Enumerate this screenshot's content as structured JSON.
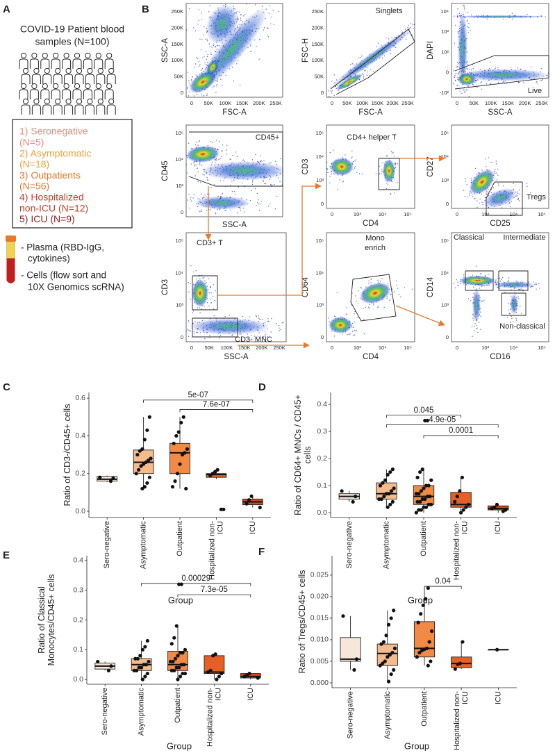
{
  "panel_a": {
    "label": "A",
    "title_lines": [
      "COVID-19 Patient blood",
      "samples (N=100)"
    ],
    "groups": [
      {
        "lines": [
          "1) Seronegative",
          "(N=5)"
        ],
        "color": "#ee8a80"
      },
      {
        "lines": [
          "2) Asymptomatic",
          "(N=18)"
        ],
        "color": "#f0a23a"
      },
      {
        "lines": [
          "3) Outpatients",
          "(N=56)"
        ],
        "color": "#e6782c"
      },
      {
        "lines": [
          "4) Hospitalized",
          "non-ICU (N=12)"
        ],
        "color": "#c2412a"
      },
      {
        "lines": [
          "5) ICU (N=9)"
        ],
        "color": "#8e1f1f"
      }
    ],
    "sample_lines": [
      "- Plasma (RBD-IgG,",
      "cytokines)",
      "- Cells (flow sort and",
      "10X Genomics scRNA)"
    ]
  },
  "panel_b": {
    "label": "B",
    "plots": [
      {
        "x_label": "FSC-A",
        "y_label": "SSC-A",
        "x_ticks": [
          "0",
          "50K",
          "100K",
          "150K",
          "200K",
          "250K"
        ],
        "y_ticks": [
          "0",
          "50K",
          "100K",
          "150K",
          "200K",
          "250K"
        ],
        "gates": []
      },
      {
        "x_label": "FSC-A",
        "y_label": "FSC-H",
        "x_ticks": [
          "0",
          "50K",
          "100K",
          "150K",
          "200K",
          "250K"
        ],
        "y_ticks": [
          "0",
          "50K",
          "100K",
          "150K",
          "200K",
          "250K"
        ],
        "gates": [
          "Singlets"
        ]
      },
      {
        "x_label": "SSC-A",
        "y_label": "DAPI",
        "x_ticks": [
          "0",
          "50K",
          "100K",
          "150K",
          "200K",
          "250K"
        ],
        "y_ticks": [
          "-10²",
          "0",
          "10²",
          "10³",
          "10⁴"
        ],
        "gates": [
          "Live"
        ]
      },
      {
        "x_label": "SSC-A",
        "y_label": "CD45",
        "x_ticks": [],
        "y_ticks": [
          "0",
          "10³",
          "10⁴",
          "10⁵"
        ],
        "gates": [
          "CD45+"
        ]
      },
      {
        "x_label": "CD4",
        "y_label": "CD3",
        "x_ticks": [
          "0",
          "10³",
          "10⁴",
          "10⁵"
        ],
        "y_ticks": [
          "0",
          "10³",
          "10⁴",
          "10⁵"
        ],
        "gates": [
          "CD4+ helper T"
        ]
      },
      {
        "x_label": "CD25",
        "y_label": "CD27",
        "x_ticks": [
          "0",
          "10³",
          "10⁴",
          "10⁵"
        ],
        "y_ticks": [
          "0",
          "10³",
          "10⁴",
          "10⁵"
        ],
        "gates": [
          "Tregs"
        ]
      },
      {
        "x_label": "SSC-A",
        "y_label": "CD3",
        "x_ticks": [
          "0",
          "50K",
          "100K",
          "150K",
          "200K",
          "250K"
        ],
        "y_ticks": [
          "0",
          "10³",
          "10⁴",
          "10⁵"
        ],
        "gates": [
          "CD3+ T",
          "CD3- MNC"
        ]
      },
      {
        "x_label": "CD4",
        "y_label": "CD64",
        "x_ticks": [
          "0",
          "10³",
          "10⁴",
          "10⁵"
        ],
        "y_ticks": [
          "0",
          "10³",
          "10⁴",
          "10⁵"
        ],
        "gates": [
          "Mono",
          "enrich"
        ]
      },
      {
        "x_label": "CD16",
        "y_label": "CD14",
        "x_ticks": [
          "0",
          "10³",
          "10⁴",
          "10⁵"
        ],
        "y_ticks": [
          "0",
          "10³",
          "10⁴",
          "10⁵"
        ],
        "gates": [
          "Classical",
          "Intermediate",
          "Non-classical"
        ]
      }
    ]
  },
  "chart_data": [
    {
      "type": "box",
      "panel": "C",
      "y_label": "Ratio of CD3-/CD45+ cells",
      "x_label": "Group",
      "categories": [
        "Sero-negative",
        "Asymptomatic",
        "Outpatient",
        "Hospitalized non-ICU",
        "ICU"
      ],
      "ylim": [
        -0.033,
        0.63
      ],
      "yticks": [
        {
          "value": 0,
          "label": "0.0"
        },
        0.2,
        0.4,
        0.6
      ],
      "boxes": [
        {
          "color": "#f6e7da",
          "min": 0.155,
          "q1": 0.16,
          "median": 0.17,
          "q3": 0.185,
          "max": 0.19,
          "points": [
            0.18,
            0.175,
            0.16
          ]
        },
        {
          "color": "#f4bb8c",
          "min": 0.12,
          "q1": 0.2,
          "median": 0.26,
          "q3": 0.325,
          "max": 0.5,
          "points": [
            0.5,
            0.43,
            0.38,
            0.33,
            0.32,
            0.3,
            0.28,
            0.27,
            0.26,
            0.25,
            0.24,
            0.22,
            0.2,
            0.18,
            0.15,
            0.13,
            0.12
          ]
        },
        {
          "color": "#f08a45",
          "min": 0.12,
          "q1": 0.2,
          "median": 0.31,
          "q3": 0.36,
          "max": 0.5,
          "points": [
            0.5,
            0.47,
            0.42,
            0.4,
            0.36,
            0.33,
            0.31,
            0.3,
            0.25,
            0.2,
            0.16,
            0.13,
            0.12
          ]
        },
        {
          "color": "#e65f24",
          "min": 0.17,
          "q1": 0.18,
          "median": 0.195,
          "q3": 0.2,
          "max": 0.22,
          "points": [
            0.22,
            0.21,
            0.2,
            0.19,
            0.01,
            0.01
          ]
        },
        {
          "color": "#d8461b",
          "min": 0.02,
          "q1": 0.035,
          "median": 0.05,
          "q3": 0.065,
          "max": 0.08,
          "points": [
            0.08,
            0.06,
            0.04,
            0.02
          ]
        }
      ],
      "comparisons": [
        {
          "from": 1,
          "to": 4,
          "y": 0.59,
          "label": "5e-07"
        },
        {
          "from": 2,
          "to": 4,
          "y": 0.54,
          "label": "7.6e-07"
        }
      ]
    },
    {
      "type": "box",
      "panel": "D",
      "y_label": "Ratio of CD64+ MNCs / CD45+ cells",
      "x_label": "Group",
      "categories": [
        "Sero-negative",
        "Asymptomatic",
        "Outpatient",
        "Hospitalized non-ICU",
        "ICU"
      ],
      "ylim": [
        -0.018,
        0.444
      ],
      "yticks": [
        {
          "value": 0,
          "label": "0.0"
        },
        0.1,
        0.2,
        0.3,
        0.4
      ],
      "boxes": [
        {
          "color": "#f6e7da",
          "min": 0.04,
          "q1": 0.05,
          "median": 0.06,
          "q3": 0.07,
          "max": 0.08,
          "points": [
            0.08,
            0.06,
            0.04
          ]
        },
        {
          "color": "#f4bb8c",
          "min": 0.02,
          "q1": 0.05,
          "median": 0.07,
          "q3": 0.11,
          "max": 0.16,
          "points": [
            0.16,
            0.15,
            0.14,
            0.12,
            0.11,
            0.1,
            0.09,
            0.08,
            0.07,
            0.07,
            0.06,
            0.05,
            0.05,
            0.04,
            0.03,
            0.02
          ]
        },
        {
          "color": "#f08a45",
          "min": 0,
          "q1": 0.03,
          "median": 0.06,
          "q3": 0.1,
          "max": 0.16,
          "points": [
            0.34,
            0.34,
            0.16,
            0.15,
            0.13,
            0.12,
            0.1,
            0.1,
            0.09,
            0.08,
            0.07,
            0.07,
            0.06,
            0.06,
            0.05,
            0.05,
            0.04,
            0.04,
            0.03,
            0.03,
            0.02,
            0.02,
            0.01,
            0.01,
            0
          ]
        },
        {
          "color": "#e65f24",
          "min": 0,
          "q1": 0.02,
          "median": 0.03,
          "q3": 0.075,
          "max": 0.13,
          "points": [
            0.13,
            0.08,
            0.06,
            0.04,
            0.03,
            0.02,
            0.01,
            0
          ]
        },
        {
          "color": "#d8461b",
          "min": 0,
          "q1": 0.01,
          "median": 0.015,
          "q3": 0.025,
          "max": 0.03,
          "points": [
            0.03,
            0.02,
            0.015,
            0.01,
            0.005
          ]
        }
      ],
      "comparisons": [
        {
          "from": 1,
          "to": 3,
          "y": 0.36,
          "label": "0.045"
        },
        {
          "from": 1,
          "to": 4,
          "y": 0.325,
          "label": "4.9e-05"
        },
        {
          "from": 2,
          "to": 4,
          "y": 0.285,
          "label": "0.0001"
        }
      ]
    },
    {
      "type": "box",
      "panel": "E",
      "y_label": "Ratio of Classical Monocytes/CD45+ cells",
      "x_label": "Group",
      "categories": [
        "Sero-negative",
        "Asymptomatic",
        "Outpatient",
        "Hospitalized non-ICU",
        "ICU"
      ],
      "ylim": [
        -0.016,
        0.416
      ],
      "yticks": [
        {
          "value": 0,
          "label": "0.0"
        },
        0.1,
        0.2,
        0.3,
        0.4
      ],
      "boxes": [
        {
          "color": "#f6e7da",
          "min": 0.03,
          "q1": 0.035,
          "median": 0.045,
          "q3": 0.055,
          "max": 0.06,
          "points": [
            0.06,
            0.045,
            0.03
          ]
        },
        {
          "color": "#f4bb8c",
          "min": 0,
          "q1": 0.03,
          "median": 0.05,
          "q3": 0.07,
          "max": 0.13,
          "points": [
            0.13,
            0.11,
            0.1,
            0.08,
            0.07,
            0.07,
            0.06,
            0.05,
            0.05,
            0.04,
            0.04,
            0.03,
            0.03,
            0.02,
            0.01,
            0
          ]
        },
        {
          "color": "#f08a45",
          "min": 0,
          "q1": 0.03,
          "median": 0.05,
          "q3": 0.095,
          "max": 0.18,
          "points": [
            0.32,
            0.32,
            0.18,
            0.14,
            0.12,
            0.1,
            0.09,
            0.09,
            0.08,
            0.07,
            0.06,
            0.06,
            0.05,
            0.05,
            0.04,
            0.04,
            0.03,
            0.03,
            0.02,
            0.02,
            0.01,
            0
          ]
        },
        {
          "color": "#e65f24",
          "min": 0,
          "q1": 0.02,
          "median": 0.025,
          "q3": 0.08,
          "max": 0.085,
          "points": [
            0.085,
            0.08,
            0.03,
            0.025,
            0.02,
            0.01,
            0
          ]
        },
        {
          "color": "#d8461b",
          "min": 0,
          "q1": 0.005,
          "median": 0.01,
          "q3": 0.02,
          "max": 0.02,
          "points": [
            0.02,
            0.015,
            0.01,
            0.005
          ]
        }
      ],
      "comparisons": [
        {
          "from": 1,
          "to": 4,
          "y": 0.323,
          "label": "0.00029"
        },
        {
          "from": 2,
          "to": 4,
          "y": 0.285,
          "label": "7.3e-05"
        }
      ]
    },
    {
      "type": "box",
      "panel": "F",
      "y_label": "Ratio of Tregs/CD45+ cells",
      "x_label": "Group",
      "categories": [
        "Sero-negative",
        "Asymptomatic",
        "Outpatient",
        "Hospitalized non-ICU",
        "ICU"
      ],
      "ylim": [
        -0.00113,
        0.0295
      ],
      "yticks": [
        {
          "value": 0,
          "label": "0.000"
        },
        {
          "value": 0.005,
          "label": "0.005"
        },
        {
          "value": 0.01,
          "label": "0.010"
        },
        {
          "value": 0.015,
          "label": "0.015"
        },
        {
          "value": 0.02,
          "label": "0.020"
        },
        {
          "value": 0.025,
          "label": "0.025"
        }
      ],
      "boxes": [
        {
          "color": "#f6e7da",
          "min": 0.003,
          "q1": 0.005,
          "median": 0.0055,
          "q3": 0.0105,
          "max": 0.0155,
          "points": [
            0.0155,
            0.0055,
            0.003
          ]
        },
        {
          "color": "#f4bb8c",
          "min": 0.0003,
          "q1": 0.004,
          "median": 0.0068,
          "q3": 0.009,
          "max": 0.0168,
          "points": [
            0.0168,
            0.015,
            0.0135,
            0.011,
            0.0095,
            0.009,
            0.008,
            0.007,
            0.0065,
            0.006,
            0.005,
            0.0045,
            0.004,
            0.003,
            0.002,
            0.0003
          ]
        },
        {
          "color": "#f08a45",
          "min": 0.004,
          "q1": 0.006,
          "median": 0.008,
          "q3": 0.0142,
          "max": 0.022,
          "points": [
            0.022,
            0.0195,
            0.018,
            0.016,
            0.014,
            0.012,
            0.0095,
            0.008,
            0.0078,
            0.0075,
            0.007,
            0.006,
            0.005,
            0.004
          ]
        },
        {
          "color": "#e65f24",
          "min": 0.0032,
          "q1": 0.0035,
          "median": 0.0045,
          "q3": 0.006,
          "max": 0.0095,
          "points": [
            0.0095,
            0.0045,
            0.0043,
            0.0032
          ]
        },
        {
          "color": "#d8461b",
          "min": 0.0077,
          "q1": 0.0077,
          "median": 0.0077,
          "q3": 0.0077,
          "max": 0.0077,
          "points": [
            0.0077
          ]
        }
      ],
      "comparisons": [
        {
          "from": 2,
          "to": 3,
          "y": 0.0224,
          "label": "0.04"
        }
      ]
    }
  ]
}
